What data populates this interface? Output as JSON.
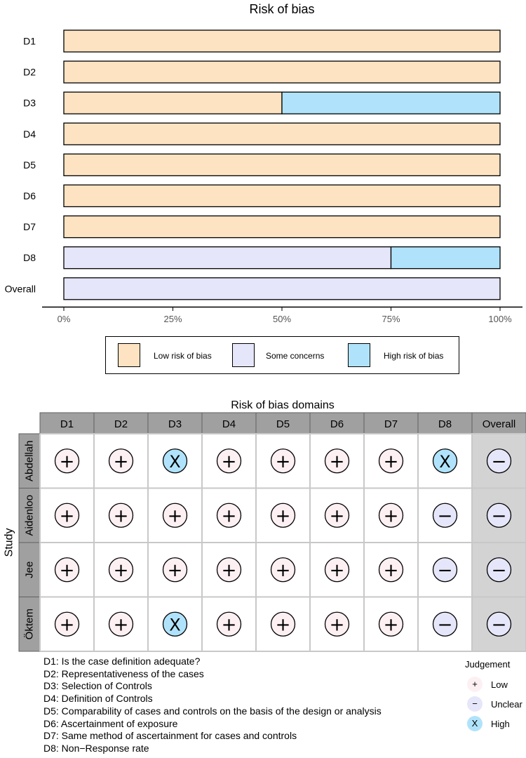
{
  "chart_data": [
    {
      "type": "bar",
      "orientation": "horizontal",
      "stacked": true,
      "title": "Risk of bias",
      "categories": [
        "D1",
        "D2",
        "D3",
        "D4",
        "D5",
        "D6",
        "D7",
        "D8",
        "Overall"
      ],
      "series": [
        {
          "name": "Low risk of bias",
          "color": "#fde3c2",
          "values": [
            100,
            100,
            50,
            100,
            100,
            100,
            100,
            0,
            0
          ]
        },
        {
          "name": "Some concerns",
          "color": "#e6e6fa",
          "values": [
            0,
            0,
            0,
            0,
            0,
            0,
            0,
            75,
            100
          ]
        },
        {
          "name": "High risk of bias",
          "color": "#b0e3fb",
          "values": [
            0,
            0,
            50,
            0,
            0,
            0,
            0,
            25,
            0
          ]
        }
      ],
      "xlim": [
        0,
        100
      ],
      "xticks": [
        "0%",
        "25%",
        "50%",
        "75%",
        "100%"
      ],
      "legend": "bottom"
    },
    {
      "type": "table",
      "title": "Risk of bias domains",
      "ylabel": "Study",
      "columns": [
        "D1",
        "D2",
        "D3",
        "D4",
        "D5",
        "D6",
        "D7",
        "D8",
        "Overall"
      ],
      "rows": [
        {
          "study": "Abdellah",
          "values": [
            "+",
            "+",
            "X",
            "+",
            "+",
            "+",
            "+",
            "X",
            "−"
          ]
        },
        {
          "study": "Aidenloo",
          "values": [
            "+",
            "+",
            "+",
            "+",
            "+",
            "+",
            "+",
            "−",
            "−"
          ]
        },
        {
          "study": "Jee",
          "values": [
            "+",
            "+",
            "+",
            "+",
            "+",
            "+",
            "+",
            "−",
            "−"
          ]
        },
        {
          "study": "Öktem",
          "values": [
            "+",
            "+",
            "X",
            "+",
            "+",
            "+",
            "+",
            "−",
            "−"
          ]
        }
      ],
      "judgement_colors": {
        "+": "#fdf0f3",
        "−": "#e6e6fa",
        "X": "#b0e3fb"
      }
    }
  ],
  "domain_descriptions": [
    "D1: Is the case definition adequate?",
    "D2: Representativeness of the cases",
    "D3: Selection of Controls",
    "D4: Definition of Controls",
    "D5: Comparability of cases and controls on the basis of the design or analysis",
    "D6: Ascertainment of exposure",
    "D7: Same method of ascertainment for cases and controls",
    "D8: Non−Response rate"
  ],
  "judgement_legend": {
    "title": "Judgement",
    "items": [
      {
        "symbol": "+",
        "label": "Low",
        "color": "#fdf0f3"
      },
      {
        "symbol": "−",
        "label": "Unclear",
        "color": "#e6e6fa"
      },
      {
        "symbol": "X",
        "label": "High",
        "color": "#b0e3fb"
      }
    ]
  }
}
